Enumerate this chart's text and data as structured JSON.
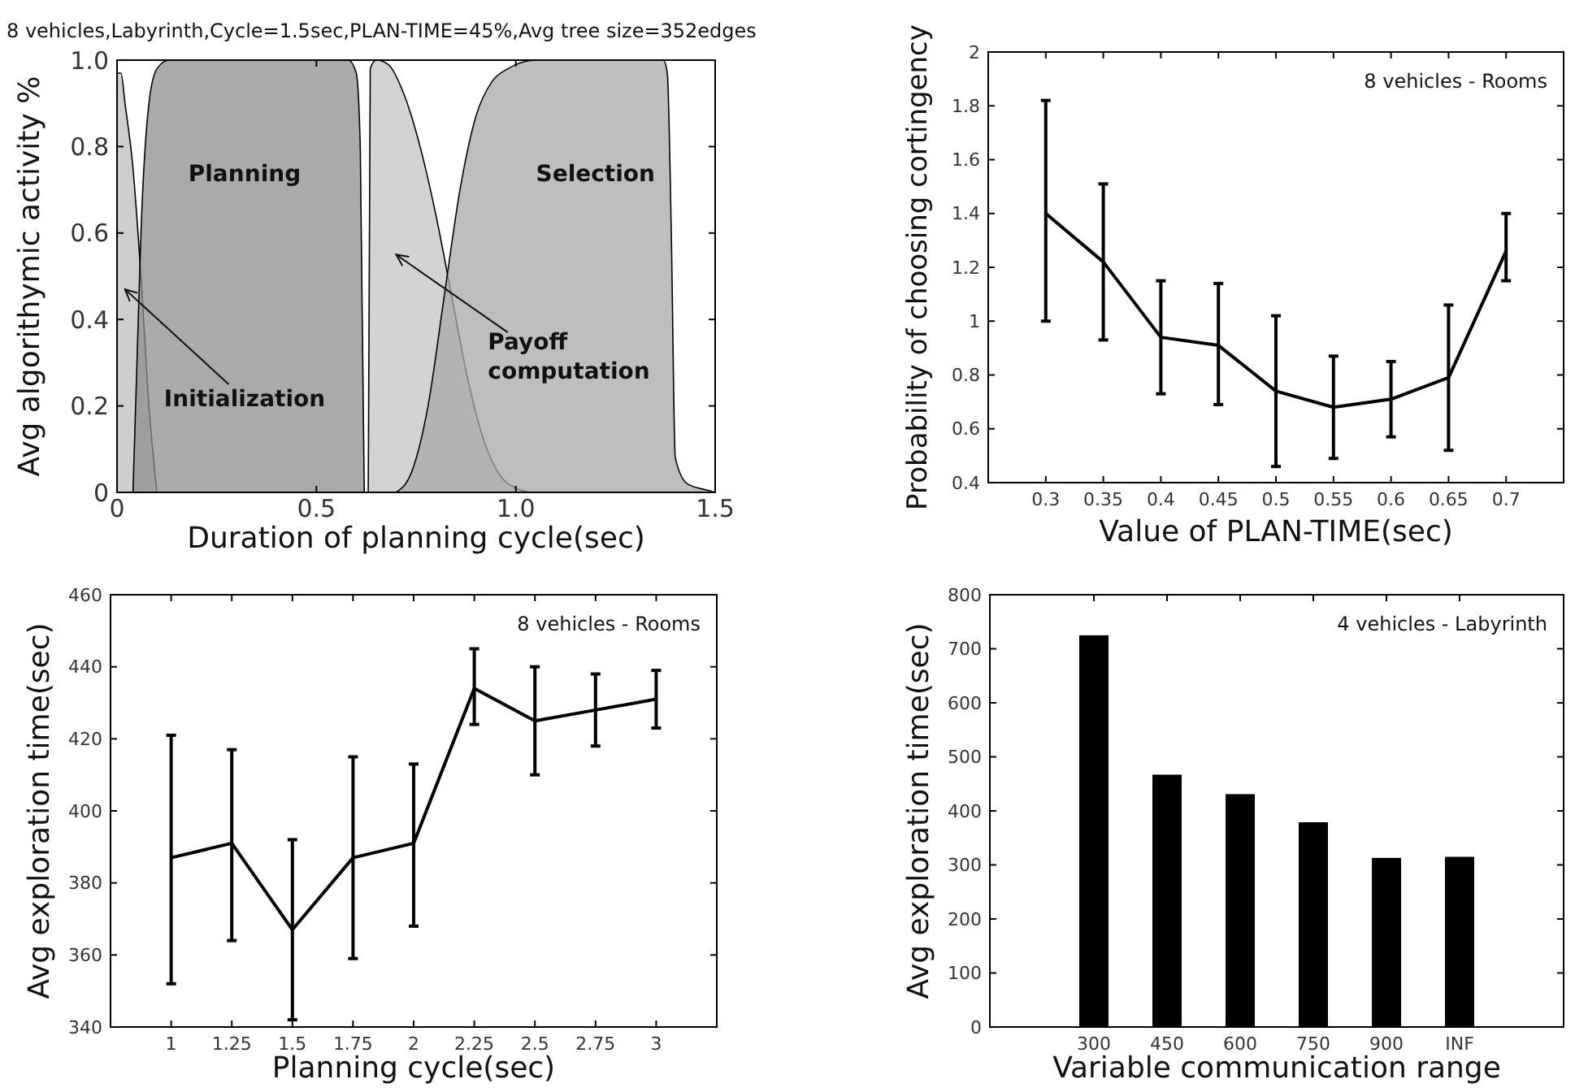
{
  "chart_data": [
    {
      "type": "area",
      "title": "8 vehicles,Labyrinth,Cycle=1.5sec,PLAN-TIME=45%,Avg tree size=352edges",
      "xlabel": "Duration of planning cycle(sec)",
      "ylabel": "Avg algorithymic activity %",
      "xlim": [
        0,
        1.5
      ],
      "ylim": [
        0,
        1
      ],
      "xticks": [
        0,
        0.5,
        {
          "value": 1,
          "label": "1.0"
        },
        1.5
      ],
      "yticks": [
        0,
        0.2,
        0.4,
        0.6,
        0.8,
        {
          "value": 1,
          "label": "1.0"
        }
      ],
      "grid": false,
      "series": [
        {
          "color": "#bdbdbd",
          "x": [
            0,
            0.01,
            0.02,
            0.04,
            0.06,
            0.08,
            0.1
          ],
          "values": [
            0.97,
            0.97,
            0.9,
            0.75,
            0.5,
            0.2,
            0
          ]
        },
        {
          "color": "#8e8e8e",
          "x": [
            0.04,
            0.05,
            0.06,
            0.08,
            0.1,
            0.13,
            0.58,
            0.6,
            0.61,
            0.62
          ],
          "values": [
            0,
            0.3,
            0.6,
            0.9,
            0.98,
            1,
            1,
            0.97,
            0.8,
            0
          ]
        },
        {
          "color": "#c4c4c4",
          "x": [
            0.63,
            0.635,
            0.65,
            0.68,
            0.72,
            0.76,
            0.8,
            0.84,
            0.88,
            0.92,
            0.96,
            1.0,
            1.04
          ],
          "values": [
            0,
            0.98,
            1,
            0.99,
            0.92,
            0.8,
            0.64,
            0.45,
            0.26,
            0.12,
            0.04,
            0.01,
            0
          ]
        },
        {
          "color": "#a8a8a8",
          "x": [
            0.7,
            0.74,
            0.78,
            0.82,
            0.86,
            0.9,
            0.94,
            0.98,
            1.05,
            1.37,
            1.38,
            1.39,
            1.4,
            1.43,
            1.48,
            1.5
          ],
          "values": [
            0,
            0.05,
            0.2,
            0.45,
            0.7,
            0.87,
            0.95,
            0.98,
            1,
            1,
            0.97,
            0.6,
            0.08,
            0.02,
            0.005,
            0
          ]
        }
      ],
      "annotations": [
        "Planning",
        "Selection",
        "Initialization",
        "Payoff computation"
      ]
    },
    {
      "type": "line",
      "xlabel": "Value of PLAN-TIME(sec)",
      "ylabel": "Probability of choosing cortingency",
      "xlim": [
        0.25,
        0.75
      ],
      "ylim": [
        0.4,
        2
      ],
      "xticks": [
        0.3,
        0.35,
        0.4,
        0.45,
        0.5,
        0.55,
        0.6,
        0.65,
        0.7
      ],
      "yticks": [
        0.4,
        0.6,
        0.8,
        1,
        1.2,
        1.4,
        1.6,
        1.8,
        2
      ],
      "grid": false,
      "marker": "none",
      "series": [
        {
          "color": "#000000",
          "x": [
            0.3,
            0.35,
            0.4,
            0.45,
            0.5,
            0.55,
            0.6,
            0.65,
            0.7
          ],
          "values": [
            1.4,
            1.22,
            0.94,
            0.91,
            0.74,
            0.68,
            0.71,
            0.79,
            1.26
          ],
          "errors": [
            [
              1.0,
              1.82
            ],
            [
              0.93,
              1.51
            ],
            [
              0.73,
              1.15
            ],
            [
              0.69,
              1.14
            ],
            [
              0.46,
              1.02
            ],
            [
              0.49,
              0.87
            ],
            [
              0.57,
              0.85
            ],
            [
              0.52,
              1.06
            ],
            [
              1.15,
              1.4
            ]
          ]
        }
      ],
      "annotations": [
        "8 vehicles - Rooms"
      ]
    },
    {
      "type": "line",
      "xlabel": "Planning cycle(sec)",
      "ylabel": "Avg exploration time(sec)",
      "xlim": [
        0.75,
        3.25
      ],
      "ylim": [
        340,
        460
      ],
      "xticks": [
        1,
        1.25,
        1.5,
        1.75,
        2,
        2.25,
        2.5,
        2.75,
        3
      ],
      "yticks": [
        340,
        360,
        380,
        400,
        420,
        440,
        460
      ],
      "grid": false,
      "marker": "none",
      "series": [
        {
          "color": "#000000",
          "x": [
            1,
            1.25,
            1.5,
            1.75,
            2,
            2.25,
            2.5,
            2.75,
            3
          ],
          "values": [
            387,
            391,
            367,
            387,
            391,
            434,
            425,
            428,
            431
          ],
          "errors": [
            [
              352,
              421
            ],
            [
              364,
              417
            ],
            [
              342,
              392
            ],
            [
              359,
              415
            ],
            [
              368,
              413
            ],
            [
              424,
              445
            ],
            [
              410,
              440
            ],
            [
              418,
              438
            ],
            [
              423,
              439
            ]
          ]
        }
      ],
      "annotations": [
        "8 vehicles - Rooms"
      ]
    },
    {
      "type": "bar",
      "xlabel": "Variable communication range",
      "ylabel": "Avg exploration time(sec)",
      "categories": [
        "300",
        "450",
        "600",
        "750",
        "900",
        "INF"
      ],
      "values": [
        725,
        467,
        431,
        379,
        313,
        315
      ],
      "color": "#000000",
      "ylim": [
        0,
        800
      ],
      "yticks": [
        0,
        100,
        200,
        300,
        400,
        500,
        600,
        700,
        800
      ],
      "grid": false,
      "annotations": [
        "4 vehicles - Labyrinth"
      ]
    }
  ]
}
